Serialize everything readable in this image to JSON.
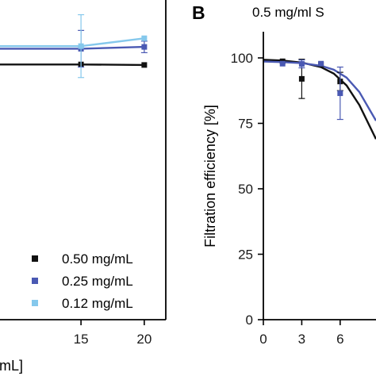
{
  "chart_data": [
    {
      "type": "scatter",
      "panel": "",
      "title": "",
      "xlabel": "[mL]",
      "ylabel": "",
      "xticks": [
        "15",
        "20"
      ],
      "xlim": [
        8.6,
        21.7
      ],
      "ylim": [
        0,
        110
      ],
      "grid": false,
      "legend_position": "bottom-right",
      "series": [
        {
          "name": "0.50 mg/mL",
          "color": "#111111",
          "x": [
            15,
            20
          ],
          "y": [
            97.5,
            97.3
          ],
          "err": [
            0,
            0
          ]
        },
        {
          "name": "0.25 mg/mL",
          "color": "#4a59b3",
          "x": [
            15,
            20
          ],
          "y": [
            103.5,
            104.2
          ],
          "err": [
            7,
            2.2
          ]
        },
        {
          "name": "0.12 mg/mL",
          "color": "#85c8ec",
          "x": [
            15,
            20
          ],
          "y": [
            104.5,
            107.5
          ],
          "err": [
            12,
            0
          ]
        }
      ]
    },
    {
      "type": "scatter",
      "panel": "B",
      "title": "0.5 mg/ml S",
      "xlabel": "",
      "ylabel": "Filtration efficiency [%]",
      "xticks": [
        "0",
        "3",
        "6"
      ],
      "yticks": [
        "0",
        "25",
        "50",
        "75",
        "100"
      ],
      "xlim": [
        0,
        8.8
      ],
      "ylim": [
        0,
        110
      ],
      "grid": false,
      "series": [
        {
          "name": "",
          "color": "#111111",
          "x": [
            1.5,
            3,
            4.5,
            6
          ],
          "y": [
            98.7,
            92,
            97.5,
            91
          ],
          "err": [
            0,
            7.5,
            0,
            3.5
          ],
          "fit": [
            [
              0,
              99.3
            ],
            [
              1.5,
              99.0
            ],
            [
              3,
              98.2
            ],
            [
              4.5,
              96.5
            ],
            [
              5.5,
              94.0
            ],
            [
              6.5,
              89.5
            ],
            [
              7.5,
              82.0
            ],
            [
              8.8,
              69.0
            ]
          ]
        },
        {
          "name": "",
          "color": "#4a59b3",
          "x": [
            1.5,
            3,
            4.5,
            6
          ],
          "y": [
            97.8,
            97.7,
            97.8,
            86.5
          ],
          "err": [
            0,
            1.5,
            0,
            10
          ],
          "fit": [
            [
              0,
              98.6
            ],
            [
              1.5,
              98.4
            ],
            [
              3,
              98.0
            ],
            [
              4.5,
              97.0
            ],
            [
              5.5,
              95.5
            ],
            [
              6.5,
              92.5
            ],
            [
              7.5,
              87.0
            ],
            [
              8.8,
              76.0
            ]
          ]
        }
      ]
    }
  ]
}
